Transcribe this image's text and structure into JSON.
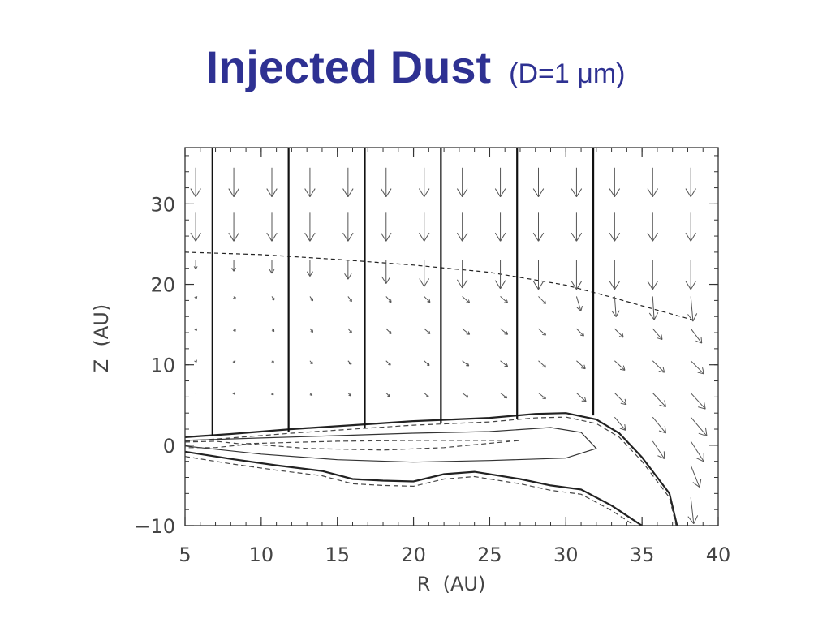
{
  "slide": {
    "title": "Injected Dust",
    "subtitle": "(D=1 μm)"
  },
  "chart_data": {
    "type": "vector-field-contour",
    "title": "Injected Dust (D=1 μm)",
    "xlabel": "R  (AU)",
    "ylabel": "Z  (AU)",
    "xlim": [
      5,
      40
    ],
    "ylim": [
      -10,
      37
    ],
    "x_ticks": [
      5,
      10,
      15,
      20,
      25,
      30,
      35,
      40
    ],
    "x_tick_labels": [
      "5",
      "10",
      "15",
      "20",
      "25",
      "30",
      "35",
      "40"
    ],
    "y_ticks": [
      -10,
      0,
      10,
      20,
      30
    ],
    "y_tick_labels": [
      "−10",
      "0",
      "10",
      "20",
      "30"
    ],
    "injection_boundaries_R": [
      6.8,
      11.8,
      16.8,
      21.8,
      26.8,
      31.8
    ],
    "injection_boundary_bottom_Z": [
      1.2,
      1.7,
      2.2,
      2.7,
      3.3,
      3.7
    ],
    "disk_surface": [
      [
        5,
        1.0
      ],
      [
        8,
        1.4
      ],
      [
        12,
        2.0
      ],
      [
        16,
        2.5
      ],
      [
        20,
        3.0
      ],
      [
        25,
        3.4
      ],
      [
        28,
        3.9
      ],
      [
        30,
        4.0
      ],
      [
        32,
        3.2
      ],
      [
        33.5,
        1.5
      ],
      [
        35,
        -1.5
      ],
      [
        36,
        -4.0
      ],
      [
        36.8,
        -6.0
      ],
      [
        37.3,
        -10
      ]
    ],
    "disk_bottom": [
      [
        5,
        -0.8
      ],
      [
        8,
        -1.7
      ],
      [
        11,
        -2.5
      ],
      [
        14,
        -3.2
      ],
      [
        16,
        -4.2
      ],
      [
        18,
        -4.4
      ],
      [
        20,
        -4.5
      ],
      [
        22,
        -3.6
      ],
      [
        24,
        -3.3
      ],
      [
        27,
        -4.2
      ],
      [
        29,
        -5.0
      ],
      [
        31,
        -5.5
      ],
      [
        33,
        -7.5
      ],
      [
        35,
        -10
      ]
    ],
    "contour_inner_solid": [
      [
        5,
        0.6
      ],
      [
        10,
        0.9
      ],
      [
        15,
        1.2
      ],
      [
        20,
        1.5
      ],
      [
        25,
        1.7
      ],
      [
        29,
        2.2
      ],
      [
        31,
        1.6
      ],
      [
        32,
        -0.4
      ],
      [
        30,
        -1.6
      ],
      [
        25,
        -1.9
      ],
      [
        20,
        -2.1
      ],
      [
        15,
        -1.8
      ],
      [
        10,
        -1.1
      ],
      [
        6,
        -0.3
      ],
      [
        5,
        -0.1
      ]
    ],
    "contour_core_dashed": [
      [
        5,
        0.4
      ],
      [
        7,
        0.5
      ],
      [
        9,
        0.1
      ],
      [
        7,
        -0.3
      ],
      [
        5,
        -0.3
      ]
    ],
    "contour_mid_dashed": [
      [
        9,
        0.2
      ],
      [
        15,
        0.5
      ],
      [
        20,
        0.6
      ],
      [
        27,
        0.6
      ],
      [
        22,
        -0.3
      ],
      [
        18,
        -0.6
      ],
      [
        13,
        -0.4
      ],
      [
        9,
        0.2
      ]
    ],
    "gas_scale_line": [
      [
        5,
        24.0
      ],
      [
        10,
        23.7
      ],
      [
        15,
        23.1
      ],
      [
        20,
        22.4
      ],
      [
        25,
        21.5
      ],
      [
        30,
        19.9
      ],
      [
        33,
        18.4
      ],
      [
        36,
        16.8
      ],
      [
        38.5,
        15.5
      ]
    ],
    "vector_field": [
      {
        "z": 34.5,
        "r": [
          5.7,
          8.2,
          10.7,
          13.2,
          15.7,
          18.2,
          20.7,
          23.2,
          25.7,
          28.2,
          30.7,
          33.2,
          35.7,
          38.2
        ],
        "u": [
          0,
          0,
          0,
          0,
          0,
          0,
          0,
          0,
          0,
          0,
          0,
          0,
          0,
          0
        ],
        "v": [
          -4,
          -4,
          -4,
          -4,
          -4,
          -4,
          -4,
          -4,
          -4,
          -4,
          -4,
          -4,
          -4,
          -4
        ]
      },
      {
        "z": 29.0,
        "r": [
          5.7,
          8.2,
          10.7,
          13.2,
          15.7,
          18.2,
          20.7,
          23.2,
          25.7,
          28.2,
          30.7,
          33.2,
          35.7,
          38.2
        ],
        "u": [
          0,
          0,
          0,
          0,
          0,
          0,
          0,
          0,
          0,
          0,
          0,
          0,
          0,
          0
        ],
        "v": [
          -4,
          -4,
          -4,
          -4,
          -4,
          -4,
          -4,
          -4,
          -4,
          -4,
          -4,
          -4,
          -4,
          -4
        ]
      },
      {
        "z": 23.0,
        "r": [
          5.7,
          8.2,
          10.7,
          13.2,
          15.7,
          18.2,
          20.7,
          23.2,
          25.7,
          28.2,
          30.7,
          33.2,
          35.7,
          38.2
        ],
        "u": [
          0,
          0,
          0,
          0,
          0,
          0,
          0,
          0,
          0,
          0,
          0,
          0,
          0,
          0
        ],
        "v": [
          -1.2,
          -1.5,
          -1.8,
          -2.2,
          -2.6,
          -3.2,
          -3.6,
          -3.8,
          -3.9,
          -4,
          -4,
          -4,
          -4,
          -4
        ]
      },
      {
        "z": 18.5,
        "r": [
          5.7,
          8.2,
          10.7,
          13.2,
          15.7,
          18.2,
          20.7,
          23.2,
          25.7,
          28.2,
          30.7,
          33.2,
          35.7,
          38.2
        ],
        "u": [
          0.1,
          0.2,
          0.3,
          0.4,
          0.5,
          0.7,
          0.8,
          1.0,
          1.0,
          1.0,
          0.6,
          0.2,
          0.2,
          0.3
        ],
        "v": [
          -0.3,
          -0.4,
          -0.5,
          -0.6,
          -0.7,
          -0.8,
          -0.8,
          -0.9,
          -0.9,
          -1.0,
          -2.0,
          -2.8,
          -3.2,
          -3.4
        ]
      },
      {
        "z": 14.5,
        "r": [
          5.7,
          8.2,
          10.7,
          13.2,
          15.7,
          18.2,
          20.7,
          23.2,
          25.7,
          28.2,
          30.7,
          33.2,
          35.7,
          38.2
        ],
        "u": [
          0.1,
          0.2,
          0.3,
          0.4,
          0.5,
          0.7,
          0.8,
          1.0,
          1.0,
          1.0,
          1.0,
          1.2,
          1.3,
          1.5
        ],
        "v": [
          -0.3,
          -0.4,
          -0.4,
          -0.5,
          -0.6,
          -0.7,
          -0.7,
          -0.8,
          -0.8,
          -0.9,
          -1.0,
          -1.2,
          -1.5,
          -2.0
        ]
      },
      {
        "z": 10.5,
        "r": [
          5.7,
          8.2,
          10.7,
          13.2,
          15.7,
          18.2,
          20.7,
          23.2,
          25.7,
          28.2,
          30.7,
          33.2,
          35.7,
          38.2
        ],
        "u": [
          0.1,
          0.15,
          0.25,
          0.35,
          0.45,
          0.6,
          0.7,
          0.9,
          1.0,
          1.0,
          1.2,
          1.4,
          1.6,
          1.8
        ],
        "v": [
          -0.2,
          -0.3,
          -0.35,
          -0.45,
          -0.5,
          -0.6,
          -0.65,
          -0.7,
          -0.8,
          -0.9,
          -1.1,
          -1.3,
          -1.6,
          -1.8
        ]
      },
      {
        "z": 6.5,
        "r": [
          5.7,
          8.2,
          10.7,
          13.2,
          15.7,
          18.2,
          20.7,
          23.2,
          25.7,
          28.2,
          30.7,
          33.2,
          35.7,
          38.2
        ],
        "u": [
          0.05,
          0.1,
          0.2,
          0.3,
          0.4,
          0.5,
          0.6,
          0.8,
          0.9,
          1.0,
          1.3,
          1.6,
          1.8,
          2.0
        ],
        "v": [
          -0.1,
          -0.2,
          -0.3,
          -0.35,
          -0.4,
          -0.5,
          -0.55,
          -0.6,
          -0.7,
          -0.8,
          -1.2,
          -1.6,
          -1.9,
          -2.2
        ]
      },
      {
        "z": 3.5,
        "r": [
          33.2,
          35.7,
          38.2
        ],
        "u": [
          1.5,
          1.8,
          2.2
        ],
        "v": [
          -1.8,
          -2.2,
          -2.6
        ]
      },
      {
        "z": 0.5,
        "r": [
          35.7,
          38.2
        ],
        "u": [
          1.6,
          1.8
        ],
        "v": [
          -2.4,
          -2.8
        ]
      },
      {
        "z": -2.5,
        "r": [
          38.2
        ],
        "u": [
          1.2
        ],
        "v": [
          -3.0
        ]
      },
      {
        "z": -6.5,
        "r": [
          38.2
        ],
        "u": [
          0.4
        ],
        "v": [
          -3.6
        ]
      }
    ]
  }
}
